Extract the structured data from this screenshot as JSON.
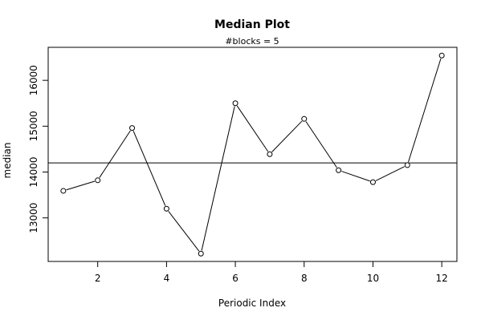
{
  "chart_data": {
    "type": "line",
    "title": "Median Plot",
    "subtitle": "#blocks =  5",
    "xlabel": "Periodic Index",
    "ylabel": "median",
    "x": [
      1,
      2,
      3,
      4,
      5,
      6,
      7,
      8,
      9,
      10,
      11,
      12
    ],
    "series": [
      {
        "values": [
          13590,
          13820,
          14960,
          13200,
          12220,
          15500,
          14390,
          15160,
          14040,
          13780,
          14150,
          16540
        ]
      }
    ],
    "reference_line": 14200,
    "xlim": [
      0.56,
      12.44
    ],
    "ylim": [
      12050,
      16720
    ],
    "x_ticks": [
      2,
      4,
      6,
      8,
      10,
      12
    ],
    "y_ticks": [
      13000,
      14000,
      15000,
      16000
    ],
    "grid": false,
    "marker": "open-circle",
    "colors": {
      "line": "#000000",
      "background": "#ffffff"
    }
  }
}
